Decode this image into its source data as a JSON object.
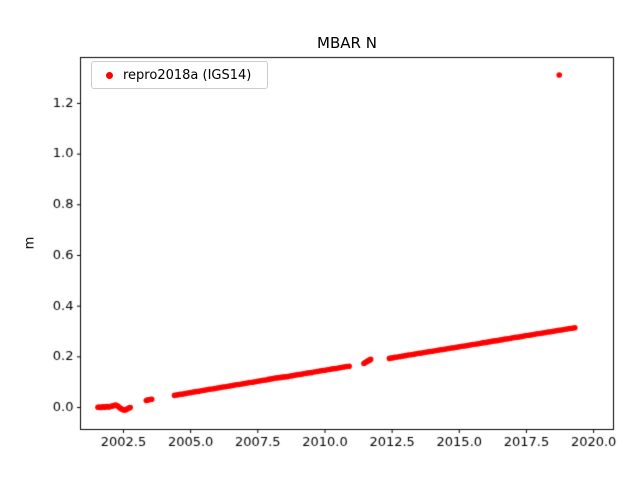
{
  "chart_data": {
    "type": "scatter",
    "title": "MBAR N",
    "xlabel": "",
    "ylabel": "m",
    "xlim": [
      2000.9,
      2020.74
    ],
    "ylim": [
      -0.0866,
      1.3812
    ],
    "grid": false,
    "legend_position": "upper left",
    "x_ticks": [
      2002.5,
      2005.0,
      2007.5,
      2010.0,
      2012.5,
      2015.0,
      2017.5,
      2020.0
    ],
    "x_tick_labels": [
      "2002.5",
      "2005.0",
      "2007.5",
      "2010.0",
      "2012.5",
      "2015.0",
      "2017.5",
      "2020.0"
    ],
    "y_ticks": [
      0.0,
      0.2,
      0.4,
      0.6,
      0.8,
      1.0,
      1.2
    ],
    "y_tick_labels": [
      "0.0",
      "0.2",
      "0.4",
      "0.6",
      "0.8",
      "1.0",
      "1.2"
    ],
    "marker_radius_px": 2.8,
    "series": [
      {
        "name": "repro2018a (IGS14)",
        "color": "#ff0000",
        "points": [
          [
            2001.55,
            0.001
          ],
          [
            2001.6,
            0.002
          ],
          [
            2001.65,
            0.0
          ],
          [
            2001.7,
            0.002
          ],
          [
            2001.75,
            0.003
          ],
          [
            2001.8,
            0.001
          ],
          [
            2001.85,
            0.003
          ],
          [
            2001.9,
            0.004
          ],
          [
            2001.95,
            0.002
          ],
          [
            2002.0,
            0.004
          ],
          [
            2002.05,
            0.005
          ],
          [
            2002.1,
            0.006
          ],
          [
            2002.15,
            0.008
          ],
          [
            2002.2,
            0.01
          ],
          [
            2002.25,
            0.008
          ],
          [
            2002.3,
            0.005
          ],
          [
            2002.35,
            0.0
          ],
          [
            2002.4,
            -0.004
          ],
          [
            2002.45,
            -0.007
          ],
          [
            2002.5,
            -0.009
          ],
          [
            2002.55,
            -0.01
          ],
          [
            2002.6,
            -0.008
          ],
          [
            2002.65,
            -0.005
          ],
          [
            2002.7,
            -0.002
          ],
          [
            2002.75,
            0.0
          ],
          [
            2003.35,
            0.028
          ],
          [
            2003.4,
            0.03
          ],
          [
            2003.45,
            0.031
          ],
          [
            2003.5,
            0.032
          ],
          [
            2003.55,
            0.033
          ],
          [
            2004.4,
            0.048
          ],
          [
            2004.5,
            0.05
          ],
          [
            2004.6,
            0.052
          ],
          [
            2004.7,
            0.053
          ],
          [
            2004.8,
            0.055
          ],
          [
            2004.9,
            0.057
          ],
          [
            2005.0,
            0.059
          ],
          [
            2005.1,
            0.061
          ],
          [
            2005.2,
            0.063
          ],
          [
            2005.3,
            0.064
          ],
          [
            2005.4,
            0.066
          ],
          [
            2005.5,
            0.068
          ],
          [
            2005.6,
            0.07
          ],
          [
            2005.7,
            0.072
          ],
          [
            2005.8,
            0.073
          ],
          [
            2005.9,
            0.075
          ],
          [
            2006.0,
            0.077
          ],
          [
            2006.1,
            0.079
          ],
          [
            2006.2,
            0.081
          ],
          [
            2006.3,
            0.082
          ],
          [
            2006.4,
            0.084
          ],
          [
            2006.5,
            0.086
          ],
          [
            2006.6,
            0.088
          ],
          [
            2006.7,
            0.09
          ],
          [
            2006.8,
            0.091
          ],
          [
            2006.9,
            0.093
          ],
          [
            2007.0,
            0.095
          ],
          [
            2007.1,
            0.097
          ],
          [
            2007.2,
            0.099
          ],
          [
            2007.3,
            0.1
          ],
          [
            2007.4,
            0.102
          ],
          [
            2007.5,
            0.104
          ],
          [
            2007.6,
            0.106
          ],
          [
            2007.7,
            0.108
          ],
          [
            2007.8,
            0.109
          ],
          [
            2007.9,
            0.111
          ],
          [
            2008.0,
            0.113
          ],
          [
            2008.1,
            0.115
          ],
          [
            2008.2,
            0.117
          ],
          [
            2008.3,
            0.118
          ],
          [
            2008.4,
            0.12
          ],
          [
            2008.5,
            0.121
          ],
          [
            2008.6,
            0.122
          ],
          [
            2008.7,
            0.124
          ],
          [
            2008.8,
            0.126
          ],
          [
            2008.9,
            0.128
          ],
          [
            2009.0,
            0.13
          ],
          [
            2009.1,
            0.131
          ],
          [
            2009.2,
            0.133
          ],
          [
            2009.3,
            0.135
          ],
          [
            2009.4,
            0.137
          ],
          [
            2009.5,
            0.138
          ],
          [
            2009.6,
            0.14
          ],
          [
            2009.7,
            0.142
          ],
          [
            2009.8,
            0.144
          ],
          [
            2009.9,
            0.146
          ],
          [
            2010.0,
            0.147
          ],
          [
            2010.1,
            0.149
          ],
          [
            2010.2,
            0.151
          ],
          [
            2010.3,
            0.153
          ],
          [
            2010.4,
            0.154
          ],
          [
            2010.5,
            0.156
          ],
          [
            2010.6,
            0.158
          ],
          [
            2010.7,
            0.16
          ],
          [
            2010.8,
            0.162
          ],
          [
            2010.9,
            0.163
          ],
          [
            2011.45,
            0.174
          ],
          [
            2011.5,
            0.178
          ],
          [
            2011.55,
            0.181
          ],
          [
            2011.6,
            0.184
          ],
          [
            2011.65,
            0.187
          ],
          [
            2011.7,
            0.19
          ],
          [
            2012.4,
            0.194
          ],
          [
            2012.5,
            0.196
          ],
          [
            2012.6,
            0.198
          ],
          [
            2012.7,
            0.199
          ],
          [
            2012.8,
            0.201
          ],
          [
            2012.9,
            0.203
          ],
          [
            2013.0,
            0.205
          ],
          [
            2013.1,
            0.207
          ],
          [
            2013.2,
            0.208
          ],
          [
            2013.3,
            0.21
          ],
          [
            2013.4,
            0.212
          ],
          [
            2013.5,
            0.214
          ],
          [
            2013.6,
            0.215
          ],
          [
            2013.7,
            0.217
          ],
          [
            2013.8,
            0.219
          ],
          [
            2013.9,
            0.221
          ],
          [
            2014.0,
            0.222
          ],
          [
            2014.1,
            0.224
          ],
          [
            2014.2,
            0.226
          ],
          [
            2014.3,
            0.228
          ],
          [
            2014.4,
            0.229
          ],
          [
            2014.5,
            0.231
          ],
          [
            2014.6,
            0.233
          ],
          [
            2014.7,
            0.235
          ],
          [
            2014.8,
            0.236
          ],
          [
            2014.9,
            0.238
          ],
          [
            2015.0,
            0.24
          ],
          [
            2015.1,
            0.242
          ],
          [
            2015.2,
            0.243
          ],
          [
            2015.3,
            0.245
          ],
          [
            2015.4,
            0.247
          ],
          [
            2015.5,
            0.249
          ],
          [
            2015.6,
            0.25
          ],
          [
            2015.7,
            0.252
          ],
          [
            2015.8,
            0.254
          ],
          [
            2015.9,
            0.256
          ],
          [
            2016.0,
            0.257
          ],
          [
            2016.1,
            0.259
          ],
          [
            2016.2,
            0.261
          ],
          [
            2016.3,
            0.263
          ],
          [
            2016.4,
            0.264
          ],
          [
            2016.5,
            0.266
          ],
          [
            2016.6,
            0.268
          ],
          [
            2016.7,
            0.27
          ],
          [
            2016.8,
            0.271
          ],
          [
            2016.9,
            0.273
          ],
          [
            2017.0,
            0.275
          ],
          [
            2017.1,
            0.277
          ],
          [
            2017.2,
            0.278
          ],
          [
            2017.3,
            0.28
          ],
          [
            2017.4,
            0.282
          ],
          [
            2017.5,
            0.284
          ],
          [
            2017.6,
            0.285
          ],
          [
            2017.7,
            0.287
          ],
          [
            2017.8,
            0.289
          ],
          [
            2017.9,
            0.291
          ],
          [
            2018.0,
            0.292
          ],
          [
            2018.1,
            0.294
          ],
          [
            2018.2,
            0.296
          ],
          [
            2018.3,
            0.298
          ],
          [
            2018.4,
            0.299
          ],
          [
            2018.5,
            0.301
          ],
          [
            2018.6,
            0.303
          ],
          [
            2018.7,
            0.305
          ],
          [
            2018.8,
            0.306
          ],
          [
            2018.9,
            0.308
          ],
          [
            2019.0,
            0.31
          ],
          [
            2019.1,
            0.312
          ],
          [
            2019.2,
            0.313
          ],
          [
            2019.3,
            0.315
          ],
          [
            2018.72,
            1.312
          ]
        ]
      }
    ]
  }
}
